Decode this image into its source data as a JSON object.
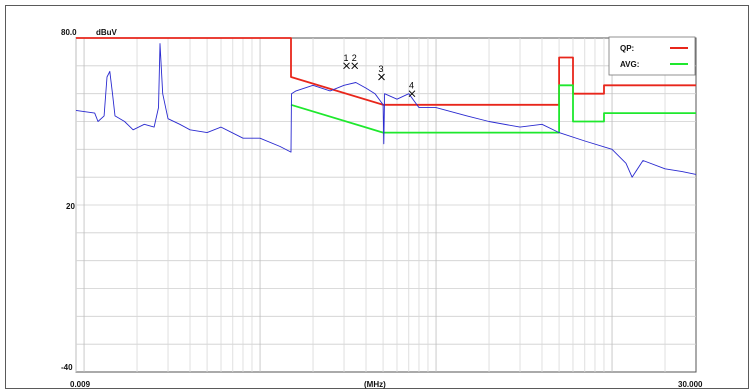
{
  "chart_data": {
    "type": "line",
    "title": "",
    "xlabel": "(MHz)",
    "ylabel": "dBuV",
    "xscale": "log",
    "xlim": [
      0.009,
      30.0
    ],
    "ylim": [
      -40,
      80
    ],
    "xtick_labels": {
      "left": "0.009",
      "right": "30.000"
    },
    "ytick_labels": {
      "top": "80.0",
      "mid": "20",
      "bottom": "-40"
    },
    "grid": true,
    "legend_position": "top-right",
    "series": [
      {
        "name": "QP:",
        "color": "#e8261b",
        "points": [
          [
            0.009,
            80
          ],
          [
            0.15,
            80
          ],
          [
            0.15,
            66
          ],
          [
            0.5,
            56
          ],
          [
            5,
            56
          ],
          [
            5,
            73
          ],
          [
            6,
            73
          ],
          [
            6,
            60
          ],
          [
            9,
            60
          ],
          [
            9,
            63
          ],
          [
            30,
            63
          ]
        ]
      },
      {
        "name": "AVG:",
        "color": "#1ee82d",
        "points": [
          [
            0.15,
            56
          ],
          [
            0.5,
            46
          ],
          [
            5,
            46
          ],
          [
            5,
            63
          ],
          [
            6,
            63
          ],
          [
            6,
            50
          ],
          [
            9,
            50
          ],
          [
            9,
            53
          ],
          [
            30,
            53
          ]
        ]
      },
      {
        "name": "",
        "color": "#2a2ad0",
        "points": [
          [
            0.009,
            54
          ],
          [
            0.0115,
            53
          ],
          [
            0.012,
            50
          ],
          [
            0.013,
            52
          ],
          [
            0.0135,
            66
          ],
          [
            0.014,
            68
          ],
          [
            0.0145,
            60
          ],
          [
            0.015,
            52
          ],
          [
            0.017,
            50
          ],
          [
            0.019,
            47
          ],
          [
            0.022,
            49
          ],
          [
            0.025,
            48
          ],
          [
            0.0265,
            55
          ],
          [
            0.027,
            78
          ],
          [
            0.028,
            60
          ],
          [
            0.03,
            51
          ],
          [
            0.035,
            49
          ],
          [
            0.04,
            47
          ],
          [
            0.05,
            46
          ],
          [
            0.06,
            48
          ],
          [
            0.08,
            44
          ],
          [
            0.1,
            44
          ],
          [
            0.13,
            41
          ],
          [
            0.15,
            39
          ],
          [
            0.151,
            60
          ],
          [
            0.16,
            61
          ],
          [
            0.2,
            63
          ],
          [
            0.25,
            61
          ],
          [
            0.3,
            63
          ],
          [
            0.35,
            64
          ],
          [
            0.4,
            62
          ],
          [
            0.45,
            60
          ],
          [
            0.5,
            56
          ],
          [
            0.505,
            42
          ],
          [
            0.51,
            60
          ],
          [
            0.6,
            58
          ],
          [
            0.7,
            60
          ],
          [
            0.8,
            55
          ],
          [
            1,
            55
          ],
          [
            1.5,
            52
          ],
          [
            2,
            50
          ],
          [
            3,
            48
          ],
          [
            4,
            49
          ],
          [
            5,
            46
          ],
          [
            7,
            43
          ],
          [
            10,
            40
          ],
          [
            12,
            35
          ],
          [
            13,
            30
          ],
          [
            15,
            36
          ],
          [
            20,
            33
          ],
          [
            25,
            32
          ],
          [
            30,
            31
          ]
        ]
      }
    ],
    "markers": [
      {
        "label": "1",
        "x": 0.31,
        "y": 70
      },
      {
        "label": "2",
        "x": 0.345,
        "y": 70
      },
      {
        "label": "3",
        "x": 0.49,
        "y": 66
      },
      {
        "label": "4",
        "x": 0.73,
        "y": 60
      }
    ]
  }
}
